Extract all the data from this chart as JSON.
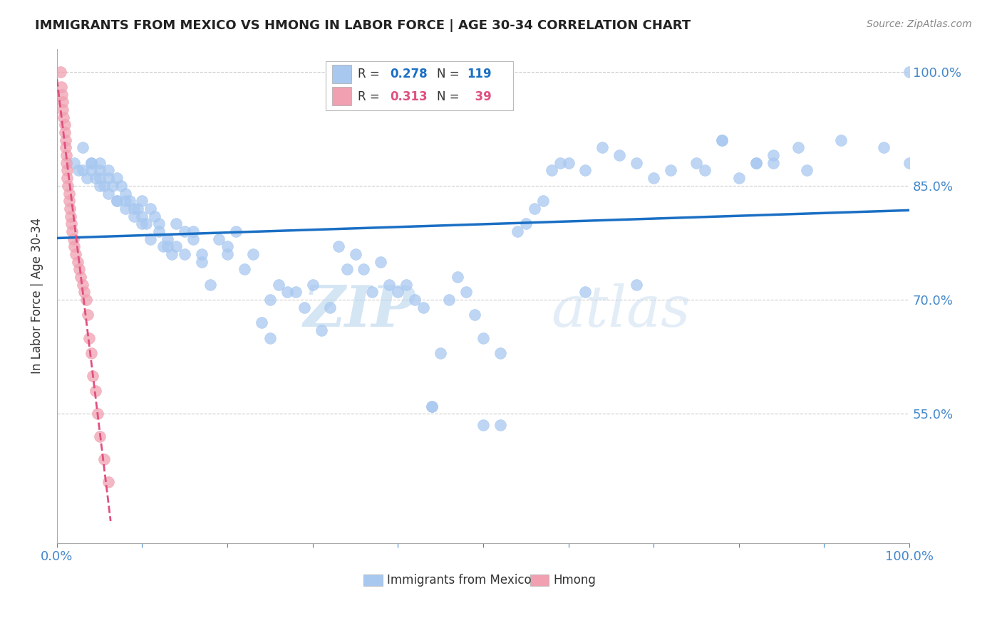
{
  "title": "IMMIGRANTS FROM MEXICO VS HMONG IN LABOR FORCE | AGE 30-34 CORRELATION CHART",
  "source": "Source: ZipAtlas.com",
  "xlabel": "",
  "ylabel": "In Labor Force | Age 30-34",
  "xlim": [
    0.0,
    1.0
  ],
  "ylim": [
    0.38,
    1.03
  ],
  "yticks": [
    0.55,
    0.7,
    0.85,
    1.0
  ],
  "ytick_labels": [
    "55.0%",
    "70.0%",
    "85.0%",
    "100.0%"
  ],
  "mexico_R": 0.278,
  "mexico_N": 119,
  "hmong_R": 0.313,
  "hmong_N": 39,
  "mexico_color": "#a8c8f0",
  "hmong_color": "#f0a0b0",
  "mexico_line_color": "#1a6fc4",
  "hmong_line_color": "#e05080",
  "watermark_zip": "ZIP",
  "watermark_atlas": "atlas",
  "background_color": "#ffffff",
  "grid_color": "#cccccc",
  "axis_color": "#4488cc",
  "mexico_x": [
    0.02,
    0.025,
    0.03,
    0.03,
    0.035,
    0.04,
    0.04,
    0.04,
    0.045,
    0.05,
    0.05,
    0.05,
    0.05,
    0.055,
    0.06,
    0.06,
    0.06,
    0.065,
    0.07,
    0.07,
    0.07,
    0.075,
    0.08,
    0.08,
    0.08,
    0.085,
    0.09,
    0.09,
    0.095,
    0.1,
    0.1,
    0.1,
    0.105,
    0.11,
    0.11,
    0.115,
    0.12,
    0.12,
    0.125,
    0.13,
    0.13,
    0.135,
    0.14,
    0.14,
    0.15,
    0.15,
    0.16,
    0.16,
    0.17,
    0.17,
    0.18,
    0.19,
    0.2,
    0.2,
    0.21,
    0.22,
    0.23,
    0.24,
    0.25,
    0.25,
    0.26,
    0.27,
    0.28,
    0.29,
    0.3,
    0.31,
    0.32,
    0.33,
    0.34,
    0.35,
    0.36,
    0.37,
    0.38,
    0.39,
    0.4,
    0.41,
    0.42,
    0.43,
    0.44,
    0.45,
    0.46,
    0.47,
    0.48,
    0.49,
    0.5,
    0.52,
    0.44,
    0.5,
    0.52,
    0.62,
    0.68,
    0.76,
    0.78,
    0.82,
    0.84,
    0.88,
    0.92,
    0.97,
    1.0,
    1.0,
    0.54,
    0.55,
    0.56,
    0.57,
    0.58,
    0.59,
    0.6,
    0.62,
    0.64,
    0.66,
    0.68,
    0.7,
    0.72,
    0.75,
    0.78,
    0.8,
    0.82,
    0.84,
    0.87
  ],
  "mexico_y": [
    0.88,
    0.87,
    0.9,
    0.87,
    0.86,
    0.88,
    0.87,
    0.88,
    0.86,
    0.85,
    0.87,
    0.88,
    0.86,
    0.85,
    0.86,
    0.87,
    0.84,
    0.85,
    0.83,
    0.86,
    0.83,
    0.85,
    0.82,
    0.83,
    0.84,
    0.83,
    0.82,
    0.81,
    0.82,
    0.8,
    0.83,
    0.81,
    0.8,
    0.82,
    0.78,
    0.81,
    0.8,
    0.79,
    0.77,
    0.78,
    0.77,
    0.76,
    0.8,
    0.77,
    0.79,
    0.76,
    0.78,
    0.79,
    0.75,
    0.76,
    0.72,
    0.78,
    0.77,
    0.76,
    0.79,
    0.74,
    0.76,
    0.67,
    0.65,
    0.7,
    0.72,
    0.71,
    0.71,
    0.69,
    0.72,
    0.66,
    0.69,
    0.77,
    0.74,
    0.76,
    0.74,
    0.71,
    0.75,
    0.72,
    0.71,
    0.72,
    0.7,
    0.69,
    0.56,
    0.63,
    0.7,
    0.73,
    0.71,
    0.68,
    0.535,
    0.535,
    0.56,
    0.65,
    0.63,
    0.71,
    0.72,
    0.87,
    0.91,
    0.88,
    0.89,
    0.87,
    0.91,
    0.9,
    1.0,
    0.88,
    0.79,
    0.8,
    0.82,
    0.83,
    0.87,
    0.88,
    0.88,
    0.87,
    0.9,
    0.89,
    0.88,
    0.86,
    0.87,
    0.88,
    0.91,
    0.86,
    0.88,
    0.88,
    0.9
  ],
  "hmong_x": [
    0.004,
    0.005,
    0.006,
    0.007,
    0.007,
    0.008,
    0.009,
    0.009,
    0.01,
    0.01,
    0.011,
    0.011,
    0.012,
    0.012,
    0.013,
    0.014,
    0.014,
    0.015,
    0.016,
    0.017,
    0.018,
    0.019,
    0.02,
    0.022,
    0.024,
    0.026,
    0.028,
    0.03,
    0.032,
    0.034,
    0.036,
    0.038,
    0.04,
    0.042,
    0.045,
    0.048,
    0.05,
    0.055,
    0.06
  ],
  "hmong_y": [
    1.0,
    0.98,
    0.97,
    0.96,
    0.95,
    0.94,
    0.93,
    0.92,
    0.91,
    0.9,
    0.89,
    0.88,
    0.87,
    0.86,
    0.85,
    0.84,
    0.83,
    0.82,
    0.81,
    0.8,
    0.79,
    0.78,
    0.77,
    0.76,
    0.75,
    0.74,
    0.73,
    0.72,
    0.71,
    0.7,
    0.68,
    0.65,
    0.63,
    0.6,
    0.58,
    0.55,
    0.52,
    0.49,
    0.46
  ]
}
